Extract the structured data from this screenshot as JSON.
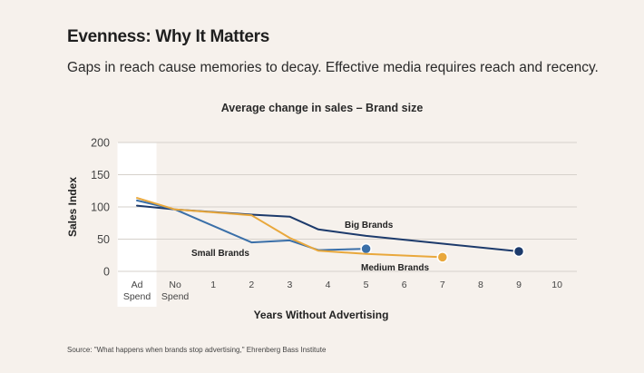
{
  "slide": {
    "title": "Evenness: Why It Matters",
    "subtitle": "Gaps in reach cause memories to decay. Effective media requires reach and recency.",
    "source": "Source: \"What happens when brands stop advertising,\" Ehrenberg Bass Institute"
  },
  "chart_data": {
    "type": "line",
    "title": "Average change in sales – Brand size",
    "xlabel": "Years Without Advertising",
    "ylabel": "Sales Index",
    "ylim": [
      0,
      200
    ],
    "yticks": [
      0,
      50,
      100,
      150,
      200
    ],
    "x_categories": [
      "Ad Spend",
      "No Spend",
      "1",
      "2",
      "3",
      "4",
      "5",
      "6",
      "7",
      "8",
      "9",
      "10"
    ],
    "highlight_category": "Ad Spend",
    "grid": true,
    "series": [
      {
        "name": "Big Brands",
        "color": "#1c3a6b",
        "points": [
          [
            "Ad Spend",
            102
          ],
          [
            "No Spend",
            96
          ],
          [
            "2",
            88
          ],
          [
            "3",
            85
          ],
          [
            "3.75",
            65
          ],
          [
            "5",
            55
          ],
          [
            "9",
            31
          ]
        ],
        "end_marker": true
      },
      {
        "name": "Small Brands",
        "color": "#3a6fa8",
        "points": [
          [
            "Ad Spend",
            110
          ],
          [
            "No Spend",
            96
          ],
          [
            "2",
            45
          ],
          [
            "3",
            48
          ],
          [
            "3.75",
            33
          ],
          [
            "5",
            35
          ]
        ],
        "end_marker": true
      },
      {
        "name": "Medium Brands",
        "color": "#e9a83c",
        "points": [
          [
            "Ad Spend",
            114
          ],
          [
            "No Spend",
            96
          ],
          [
            "2",
            87
          ],
          [
            "3",
            52
          ],
          [
            "3.75",
            32
          ],
          [
            "5",
            27
          ],
          [
            "7",
            22
          ]
        ],
        "end_marker": true
      }
    ]
  }
}
